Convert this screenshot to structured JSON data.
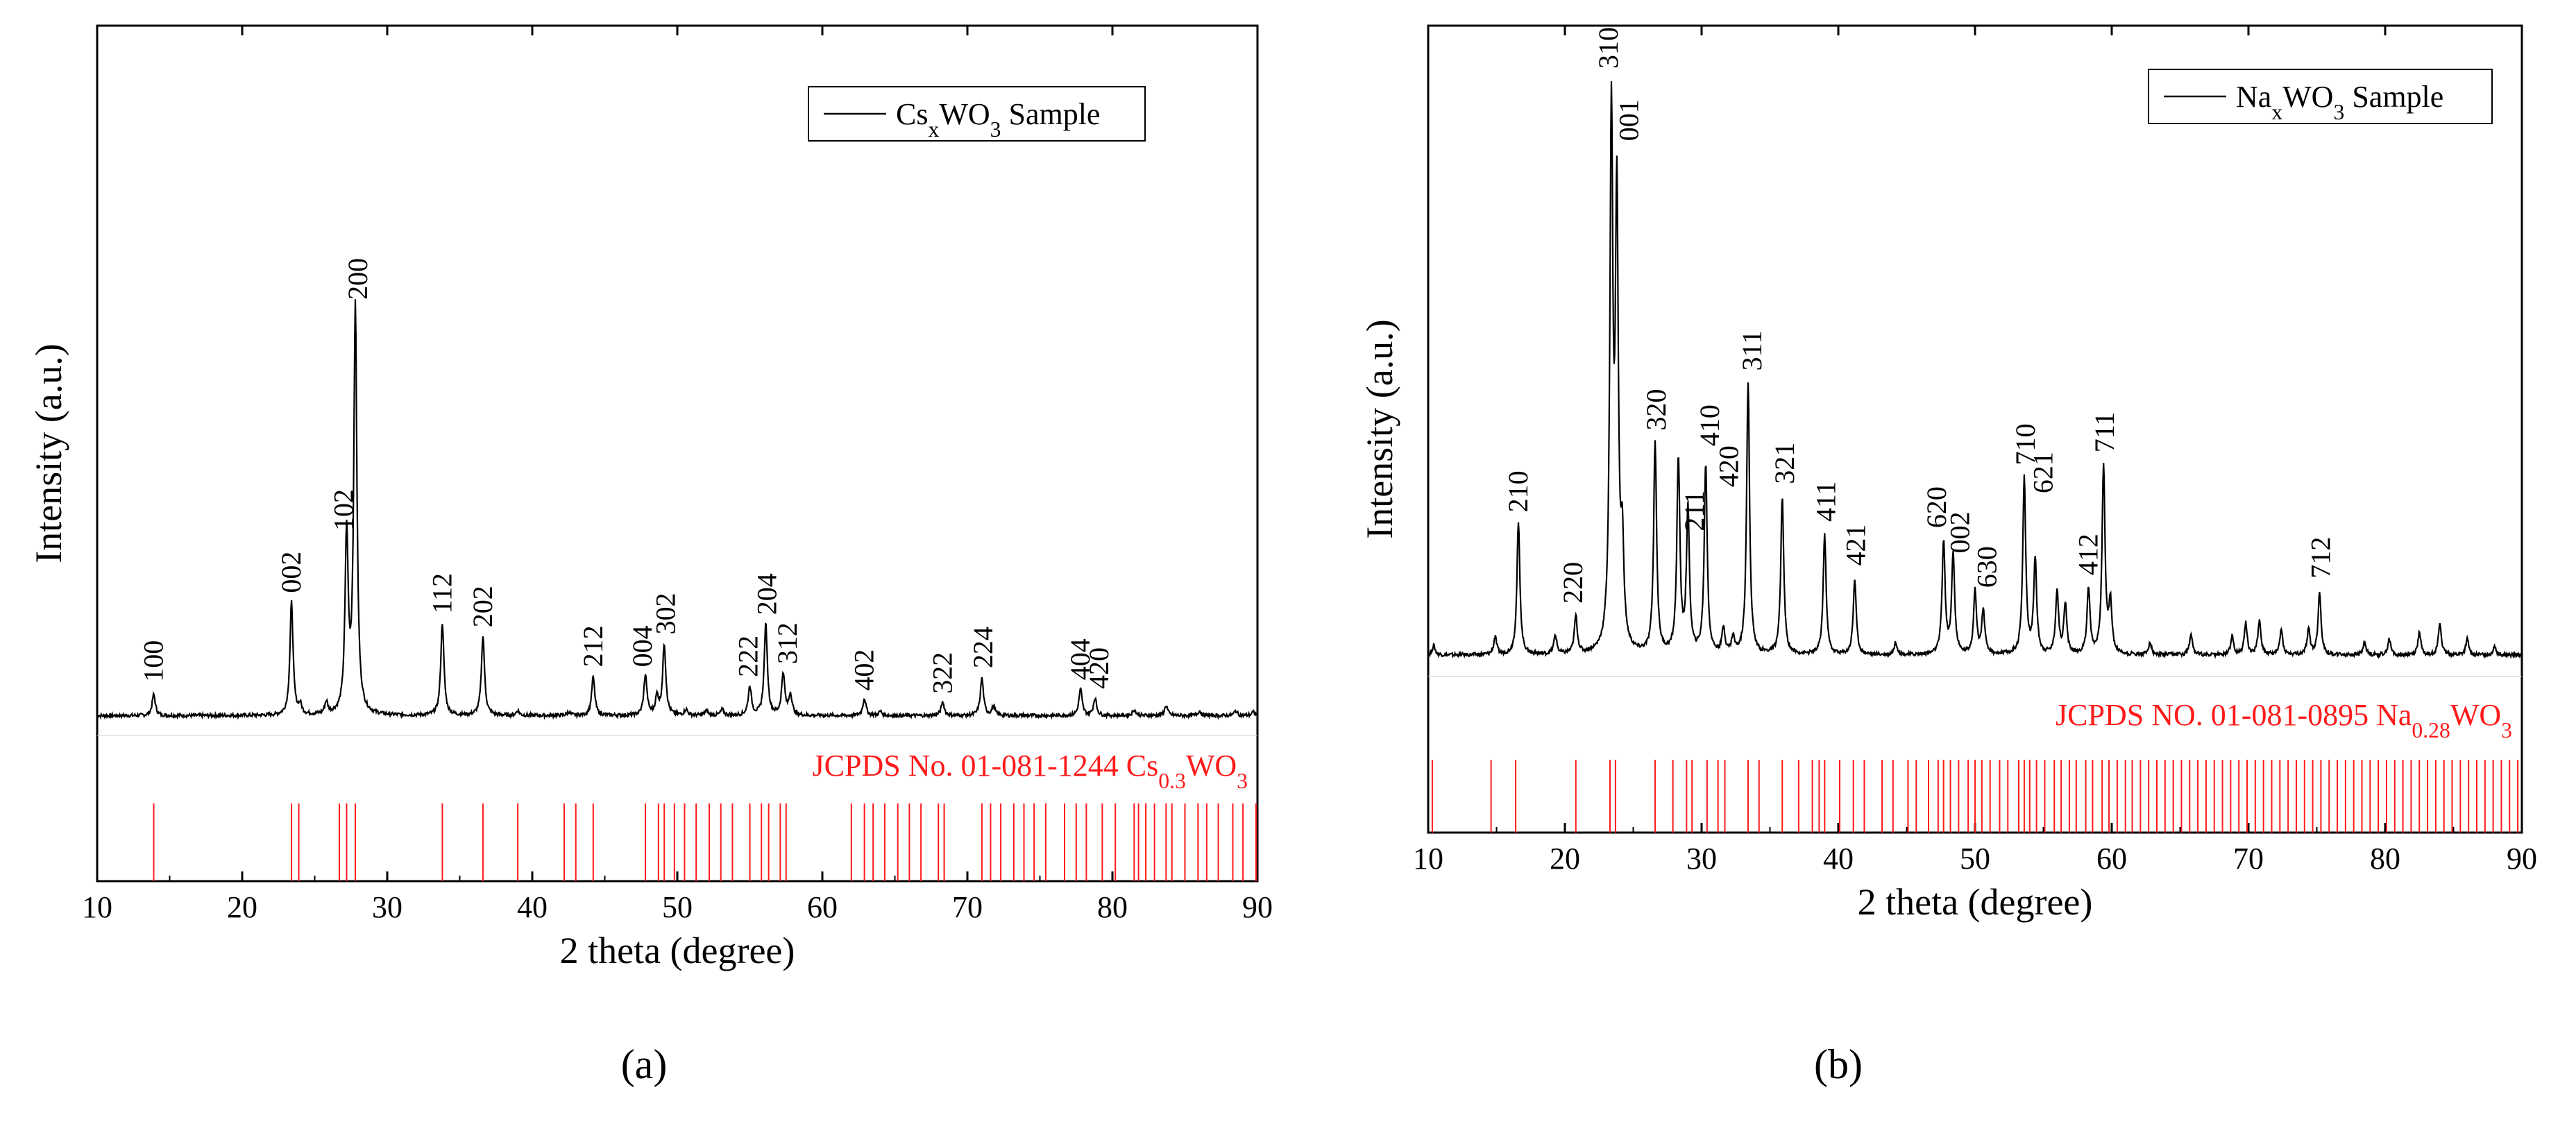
{
  "chart_data": [
    {
      "type": "line",
      "panel_label": "(a)",
      "xlabel": "2 theta (degree)",
      "ylabel": "Intensity (a.u.)",
      "xlim": [
        10,
        90
      ],
      "xticks": [
        10,
        20,
        30,
        40,
        50,
        60,
        70,
        80,
        90
      ],
      "ylim": [
        0,
        100
      ],
      "legend": {
        "position": "top-right",
        "text": "Cs",
        "sub": "x",
        "text2": "WO",
        "sub2": "3",
        "text3": " Sample"
      },
      "reference": {
        "text": "JCPDS No. 01-081-1244 Cs",
        "sub": "0.3",
        "text2": "WO",
        "sub2": "3",
        "color": "#ff1a1a",
        "lines": [
          13.9,
          23.4,
          23.9,
          26.7,
          27.2,
          27.8,
          33.8,
          36.6,
          39.0,
          42.2,
          43.0,
          44.2,
          47.8,
          48.7,
          49.1,
          49.8,
          50.5,
          51.3,
          52.2,
          53.0,
          53.8,
          55.0,
          55.8,
          56.3,
          57.1,
          57.5,
          62.0,
          62.9,
          63.5,
          64.3,
          65.2,
          66.0,
          66.8,
          68.0,
          68.4,
          71.0,
          71.6,
          72.3,
          73.2,
          73.9,
          74.6,
          75.4,
          76.7,
          77.5,
          78.2,
          79.3,
          80.2,
          81.5,
          81.8,
          82.3,
          82.9,
          83.7,
          84.1,
          85.0,
          85.9,
          86.5,
          87.3,
          88.3,
          89.0,
          89.9
        ]
      },
      "series": [
        {
          "name": "CsxWO3 Sample",
          "color": "#000000",
          "peaks": [
            [
              13.9,
              3.6
            ],
            [
              23.4,
              19.1
            ],
            [
              24.0,
              1.5
            ],
            [
              25.8,
              2.0
            ],
            [
              27.2,
              30.0
            ],
            [
              27.8,
              68.6
            ],
            [
              33.8,
              15.6
            ],
            [
              36.6,
              13.4
            ],
            [
              39.0,
              0.8
            ],
            [
              42.5,
              0.6
            ],
            [
              44.2,
              6.5
            ],
            [
              47.8,
              6.8
            ],
            [
              48.6,
              3.0
            ],
            [
              49.1,
              12.0
            ],
            [
              50.6,
              1.0
            ],
            [
              52.0,
              0.8
            ],
            [
              53.1,
              1.0
            ],
            [
              55.0,
              4.9
            ],
            [
              56.1,
              15.4
            ],
            [
              57.3,
              7.1
            ],
            [
              57.8,
              3.5
            ],
            [
              62.9,
              2.9
            ],
            [
              64.0,
              0.7
            ],
            [
              68.3,
              2.3
            ],
            [
              71.0,
              6.3
            ],
            [
              71.8,
              1.5
            ],
            [
              77.8,
              4.5
            ],
            [
              78.8,
              2.9
            ],
            [
              81.5,
              1.0
            ],
            [
              83.7,
              1.7
            ],
            [
              86.0,
              0.8
            ],
            [
              88.5,
              0.8
            ],
            [
              89.7,
              0.6
            ]
          ]
        }
      ],
      "annotations": [
        {
          "label": "100",
          "x": 13.9,
          "y": 6.0
        },
        {
          "label": "002",
          "x": 23.4,
          "y": 21.0
        },
        {
          "label": "102",
          "x": 27.0,
          "y": 31.5
        },
        {
          "label": "200",
          "x": 28.0,
          "y": 70.5
        },
        {
          "label": "112",
          "x": 33.8,
          "y": 17.5
        },
        {
          "label": "202",
          "x": 36.6,
          "y": 15.2
        },
        {
          "label": "212",
          "x": 44.2,
          "y": 8.5
        },
        {
          "label": "004",
          "x": 47.6,
          "y": 8.5
        },
        {
          "label": "302",
          "x": 49.2,
          "y": 14.0
        },
        {
          "label": "222",
          "x": 54.9,
          "y": 6.8
        },
        {
          "label": "204",
          "x": 56.2,
          "y": 17.3
        },
        {
          "label": "312",
          "x": 57.6,
          "y": 9.0
        },
        {
          "label": "402",
          "x": 62.9,
          "y": 4.5
        },
        {
          "label": "322",
          "x": 68.3,
          "y": 4.0
        },
        {
          "label": "224",
          "x": 71.1,
          "y": 8.3
        },
        {
          "label": "404",
          "x": 77.8,
          "y": 6.3
        },
        {
          "label": "420",
          "x": 79.1,
          "y": 4.8
        }
      ]
    },
    {
      "type": "line",
      "panel_label": "(b)",
      "xlabel": "2 theta (degree)",
      "ylabel": "Intensity (a.u.)",
      "xlim": [
        10,
        90
      ],
      "xticks": [
        10,
        20,
        30,
        40,
        50,
        60,
        70,
        80,
        90
      ],
      "ylim": [
        0,
        100
      ],
      "legend": {
        "position": "top-right",
        "text": "Na",
        "sub": "x",
        "text2": "WO",
        "sub2": "3",
        "text3": " Sample"
      },
      "reference": {
        "text": "JCPDS NO. 01-081-0895 Na",
        "sub": "0.28",
        "text2": "WO",
        "sub2": "3",
        "color": "#ff1a1a",
        "lines": [
          10.3,
          14.6,
          16.4,
          20.8,
          23.3,
          23.7,
          26.6,
          27.9,
          28.9,
          29.3,
          30.4,
          31.2,
          31.7,
          33.4,
          34.2,
          35.9,
          37.1,
          38.1,
          38.6,
          39.0,
          40.1,
          41.1,
          41.9,
          43.2,
          44.0,
          45.1,
          45.7,
          46.6,
          47.3,
          47.7,
          48.2,
          48.8,
          49.5,
          50.0,
          50.5,
          51.1,
          51.8,
          52.4,
          53.2,
          53.6,
          54.0,
          54.5,
          55.1,
          55.8,
          56.3,
          56.9,
          57.4,
          58.1,
          58.6,
          59.3,
          59.8,
          60.4,
          61.0,
          61.5,
          62.1,
          62.7,
          63.3,
          63.9,
          64.5,
          65.1,
          65.7,
          66.3,
          66.9,
          67.5,
          68.1,
          68.7,
          69.3,
          69.9,
          70.5,
          71.1,
          71.7,
          72.3,
          72.9,
          73.5,
          74.1,
          74.7,
          75.3,
          75.9,
          76.5,
          77.1,
          77.7,
          78.3,
          78.9,
          79.5,
          80.1,
          80.7,
          81.3,
          81.9,
          82.5,
          83.1,
          83.7,
          84.3,
          84.9,
          85.5,
          86.1,
          86.7,
          87.3,
          87.9,
          88.5,
          89.1,
          89.7
        ]
      },
      "series": [
        {
          "name": "NaxWO3 Sample",
          "color": "#000000",
          "peaks": [
            [
              10.4,
              1.5
            ],
            [
              14.9,
              2.8
            ],
            [
              16.6,
              21.0
            ],
            [
              19.3,
              3.0
            ],
            [
              20.8,
              6.0
            ],
            [
              23.4,
              84.0
            ],
            [
              23.8,
              70.0
            ],
            [
              24.2,
              15.0
            ],
            [
              26.6,
              33.5
            ],
            [
              28.3,
              31.0
            ],
            [
              29.0,
              22.5
            ],
            [
              30.3,
              30.0
            ],
            [
              31.6,
              4.0
            ],
            [
              32.3,
              2.5
            ],
            [
              33.4,
              43.0
            ],
            [
              35.9,
              25.0
            ],
            [
              39.0,
              19.0
            ],
            [
              41.2,
              12.0
            ],
            [
              44.2,
              2.0
            ],
            [
              47.7,
              18.0
            ],
            [
              48.4,
              16.0
            ],
            [
              50.0,
              10.0
            ],
            [
              50.6,
              7.0
            ],
            [
              53.6,
              28.0
            ],
            [
              54.4,
              15.0
            ],
            [
              56.0,
              10.0
            ],
            [
              56.6,
              8.0
            ],
            [
              58.3,
              10.5
            ],
            [
              59.4,
              30.0
            ],
            [
              59.9,
              8.0
            ],
            [
              62.8,
              2.0
            ],
            [
              65.8,
              3.5
            ],
            [
              68.8,
              3.0
            ],
            [
              69.8,
              5.0
            ],
            [
              70.8,
              5.5
            ],
            [
              72.4,
              4.0
            ],
            [
              74.4,
              4.0
            ],
            [
              75.2,
              10.0
            ],
            [
              78.5,
              2.0
            ],
            [
              80.3,
              2.5
            ],
            [
              82.5,
              3.5
            ],
            [
              84.0,
              5.0
            ],
            [
              86.0,
              2.5
            ],
            [
              88.0,
              1.5
            ]
          ]
        }
      ],
      "annotations": [
        {
          "label": "210",
          "x": 16.6,
          "y": 23.0
        },
        {
          "label": "220",
          "x": 20.6,
          "y": 8.5
        },
        {
          "label": "310",
          "x": 23.2,
          "y": 93.5
        },
        {
          "label": "001",
          "x": 24.7,
          "y": 82.0
        },
        {
          "label": "320",
          "x": 26.7,
          "y": 36.0
        },
        {
          "label": "211",
          "x": 29.5,
          "y": 20.0
        },
        {
          "label": "410",
          "x": 30.6,
          "y": 33.5
        },
        {
          "label": "420",
          "x": 32.0,
          "y": 27.0
        },
        {
          "label": "311",
          "x": 33.7,
          "y": 45.5
        },
        {
          "label": "321",
          "x": 36.1,
          "y": 27.5
        },
        {
          "label": "411",
          "x": 39.1,
          "y": 21.5
        },
        {
          "label": "421",
          "x": 41.3,
          "y": 14.5
        },
        {
          "label": "620",
          "x": 47.2,
          "y": 20.5
        },
        {
          "label": "002",
          "x": 48.9,
          "y": 16.5
        },
        {
          "label": "630",
          "x": 50.9,
          "y": 11.0
        },
        {
          "label": "710",
          "x": 53.7,
          "y": 30.5
        },
        {
          "label": "621",
          "x": 55.0,
          "y": 26.0
        },
        {
          "label": "412",
          "x": 58.3,
          "y": 13.0
        },
        {
          "label": "711",
          "x": 59.5,
          "y": 32.5
        },
        {
          "label": "712",
          "x": 75.3,
          "y": 12.5
        }
      ]
    }
  ]
}
